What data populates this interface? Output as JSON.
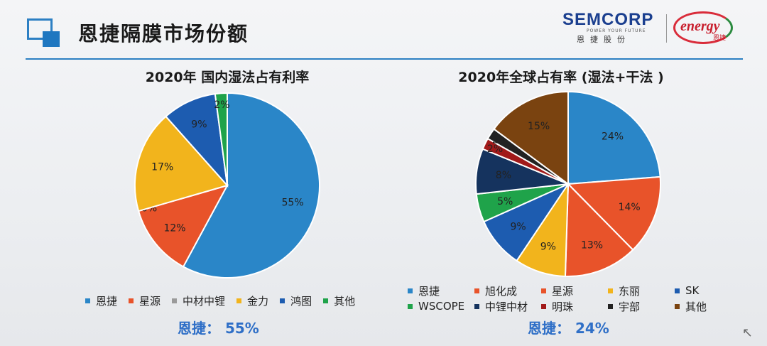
{
  "header": {
    "title": "恩捷隔膜市场份额",
    "brand_name": "SEMCORP",
    "brand_tagline": "POWER YOUR FUTURE",
    "brand_cn": "恩捷股份",
    "energy_logo": "energy",
    "energy_cn": "恩捷"
  },
  "colors": {
    "恩捷": "#2a86c8",
    "星源": "#e8532a",
    "中材中锂": "#9a9a9a",
    "金力": "#f2b41c",
    "鸿图": "#1d5cb0",
    "其他_left": "#1fa34a",
    "旭化成": "#e8532a",
    "东丽": "#f2b41c",
    "SK": "#1d5cb0",
    "WSCOPE": "#1fa34a",
    "中锂中材": "#15335e",
    "明珠": "#a11a1a",
    "宇部": "#222222",
    "其他_right": "#7a4310"
  },
  "chart_data": [
    {
      "type": "pie",
      "title": "2020年 国内湿法占有利率",
      "slices": [
        {
          "name": "恩捷",
          "value": 55,
          "label": "55%"
        },
        {
          "name": "星源",
          "value": 12,
          "label": "12%"
        },
        {
          "name": "中材中锂",
          "value": 0,
          "label": "0%"
        },
        {
          "name": "金力",
          "value": 17,
          "label": "17%"
        },
        {
          "name": "鸿图",
          "value": 9,
          "label": "9%"
        },
        {
          "name": "其他",
          "value": 2,
          "label": "2%"
        }
      ],
      "legend": [
        "恩捷",
        "星源",
        "中材中锂",
        "金力",
        "鸿图",
        "其他"
      ],
      "legend_placement": "bottom",
      "summary": "恩捷： 55%"
    },
    {
      "type": "pie",
      "title": "2020年全球占有率 (湿法+干法 )",
      "slices": [
        {
          "name": "恩捷",
          "value": 24,
          "label": "24%"
        },
        {
          "name": "旭化成",
          "value": 14,
          "label": "14%"
        },
        {
          "name": "星源",
          "value": 13,
          "label": "13%"
        },
        {
          "name": "东丽",
          "value": 9,
          "label": "9%"
        },
        {
          "name": "SK",
          "value": 9,
          "label": "9%"
        },
        {
          "name": "WSCOPE",
          "value": 5,
          "label": "5%"
        },
        {
          "name": "中锂中材",
          "value": 8,
          "label": "8%"
        },
        {
          "name": "明珠",
          "value": 2,
          "label": "2%"
        },
        {
          "name": "宇部",
          "value": 2,
          "label": "2%"
        },
        {
          "name": "其他",
          "value": 15,
          "label": "15%"
        }
      ],
      "legend": [
        "恩捷",
        "旭化成",
        "星源",
        "东丽",
        "SK",
        "WSCOPE",
        "中锂中材",
        "明珠",
        "宇部",
        "其他"
      ],
      "legend_placement": "bottom",
      "summary": "恩捷： 24%"
    }
  ]
}
